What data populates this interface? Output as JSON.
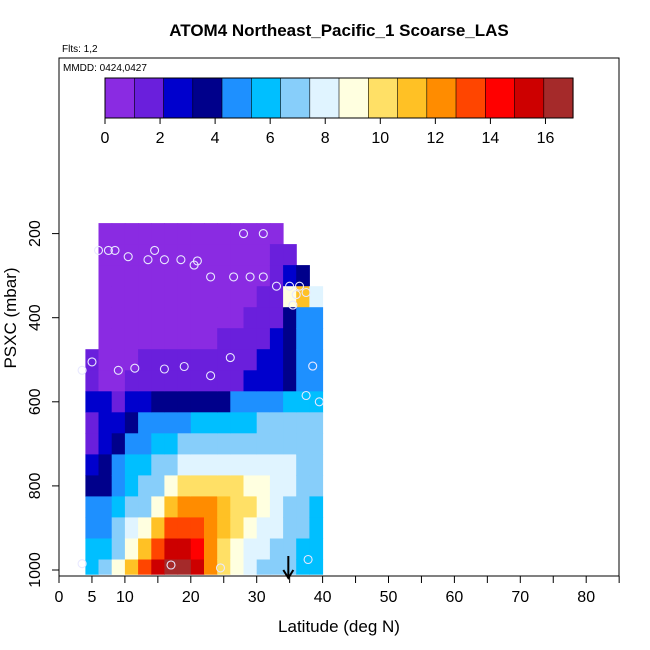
{
  "chart_data": {
    "type": "heatmap",
    "title": "ATOM4 Northeast_Pacific_1 Scoarse_LAS",
    "flights_label": "Flts: 1,2",
    "dates_label": "MMDD: 0424,0427",
    "xlabel": "Latitude (deg N)",
    "ylabel": "PSXC (mbar)",
    "xlim": [
      0,
      85
    ],
    "ylim": [
      1010,
      0
    ],
    "x_ticks": [
      0,
      5,
      10,
      20,
      30,
      40,
      50,
      60,
      70,
      80
    ],
    "y_ticks": [
      200,
      400,
      600,
      800,
      1000
    ],
    "colorbar": {
      "range": [
        0,
        17
      ],
      "ticks": [
        0,
        2,
        4,
        6,
        8,
        10,
        12,
        14,
        16
      ],
      "colors": [
        "#8a2be2",
        "#6a1fdc",
        "#0000cd",
        "#00008b",
        "#1e90ff",
        "#00bfff",
        "#87cefa",
        "#e0f4ff",
        "#ffffe0",
        "#ffe066",
        "#ffc125",
        "#ff8c00",
        "#ff4500",
        "#ff0000",
        "#cd0000",
        "#a52a2a"
      ]
    },
    "pressure_levels": [
      200,
      250,
      300,
      350,
      400,
      450,
      500,
      550,
      600,
      650,
      700,
      750,
      800,
      850,
      900,
      950,
      1000
    ],
    "profiles": [
      {
        "lat": 4,
        "cells": [
          null,
          null,
          null,
          null,
          null,
          null,
          1.5,
          1.8,
          2.3,
          2.1,
          2.0,
          2.6,
          3.2,
          4.5,
          5.0,
          5.4,
          5.5
        ]
      },
      {
        "lat": 6,
        "cells": [
          0.4,
          0.4,
          0.5,
          0.5,
          0.6,
          0.7,
          0.8,
          0.9,
          2.2,
          2.4,
          2.6,
          3.4,
          4.2,
          5.0,
          5.3,
          5.7,
          6.5
        ]
      },
      {
        "lat": 8,
        "cells": [
          0.4,
          0.5,
          0.5,
          0.6,
          0.6,
          0.7,
          0.9,
          1.0,
          2.1,
          3.0,
          3.6,
          4.8,
          5.3,
          5.8,
          6.5,
          7.2,
          8.5
        ]
      },
      {
        "lat": 10,
        "cells": [
          0.5,
          0.5,
          0.5,
          0.6,
          0.7,
          0.8,
          1.0,
          1.2,
          2.6,
          3.8,
          4.6,
          5.5,
          5.9,
          6.4,
          7.6,
          9.0,
          10.8
        ]
      },
      {
        "lat": 12,
        "cells": [
          0.5,
          0.5,
          0.6,
          0.7,
          0.8,
          0.8,
          1.1,
          1.3,
          3.0,
          4.4,
          5.2,
          5.9,
          6.4,
          7.2,
          9.0,
          11.0,
          13.5
        ]
      },
      {
        "lat": 14,
        "cells": [
          0.5,
          0.5,
          0.6,
          0.7,
          0.8,
          0.9,
          1.2,
          1.4,
          3.3,
          4.8,
          5.8,
          6.4,
          7.4,
          8.8,
          11.5,
          13.5,
          15.3
        ]
      },
      {
        "lat": 16,
        "cells": [
          0.5,
          0.6,
          0.6,
          0.7,
          0.8,
          0.9,
          1.2,
          1.5,
          3.5,
          5.0,
          6.2,
          7.3,
          9.0,
          11.2,
          13.2,
          15.1,
          16.2
        ]
      },
      {
        "lat": 18,
        "cells": [
          0.5,
          0.6,
          0.6,
          0.7,
          0.8,
          0.9,
          1.2,
          1.5,
          3.6,
          5.2,
          6.4,
          8.0,
          9.8,
          12.0,
          13.8,
          15.6,
          16.4
        ]
      },
      {
        "lat": 20,
        "cells": [
          0.5,
          0.6,
          0.7,
          0.7,
          0.8,
          1.0,
          1.3,
          1.6,
          3.8,
          5.4,
          6.6,
          8.2,
          10.0,
          12.2,
          13.6,
          14.8,
          15.0
        ]
      },
      {
        "lat": 22,
        "cells": [
          0.6,
          0.6,
          0.7,
          0.8,
          0.9,
          1.0,
          1.4,
          1.7,
          4.0,
          5.6,
          6.7,
          8.2,
          10.0,
          11.8,
          12.6,
          11.8,
          12.0
        ]
      },
      {
        "lat": 24,
        "cells": [
          0.6,
          0.7,
          0.7,
          0.8,
          0.9,
          1.1,
          1.5,
          1.8,
          4.2,
          5.8,
          6.8,
          8.0,
          9.8,
          11.0,
          11.2,
          9.8,
          9.6
        ]
      },
      {
        "lat": 26,
        "cells": [
          0.7,
          0.7,
          0.8,
          0.9,
          1.0,
          1.2,
          1.7,
          2.0,
          4.4,
          6.0,
          6.9,
          7.8,
          9.6,
          10.4,
          10.0,
          8.8,
          8.6
        ]
      },
      {
        "lat": 28,
        "cells": [
          0.7,
          0.8,
          0.9,
          1.0,
          1.2,
          1.4,
          1.9,
          2.2,
          4.6,
          6.2,
          7.0,
          7.8,
          9.2,
          9.6,
          9.0,
          8.2,
          8.0
        ]
      },
      {
        "lat": 30,
        "cells": [
          0.8,
          0.9,
          1.0,
          1.2,
          1.4,
          1.7,
          2.2,
          2.5,
          4.9,
          6.4,
          7.2,
          7.8,
          8.8,
          8.8,
          8.2,
          7.6,
          7.4
        ]
      },
      {
        "lat": 32,
        "cells": [
          1.0,
          1.1,
          1.3,
          1.6,
          1.9,
          2.3,
          2.8,
          3.0,
          5.2,
          6.6,
          7.3,
          7.8,
          8.3,
          8.1,
          7.6,
          7.0,
          6.9
        ]
      },
      {
        "lat": 34,
        "cells": [
          null,
          1.6,
          2.5,
          9.0,
          3.4,
          3.8,
          4.2,
          4.2,
          5.6,
          6.7,
          7.3,
          7.6,
          7.6,
          7.3,
          7.0,
          6.6,
          6.4
        ]
      },
      {
        "lat": 36,
        "cells": [
          null,
          null,
          3.4,
          11.5,
          4.4,
          4.6,
          4.8,
          4.9,
          5.9,
          6.7,
          7.1,
          7.2,
          7.0,
          6.7,
          6.4,
          6.0,
          6.0
        ]
      },
      {
        "lat": 38,
        "cells": [
          null,
          null,
          null,
          7.5,
          5.0,
          5.1,
          5.2,
          5.3,
          6.1,
          6.6,
          6.8,
          6.7,
          6.4,
          6.0,
          5.8,
          5.6,
          5.6
        ]
      }
    ],
    "observations": [
      {
        "lat": 28,
        "p": 200
      },
      {
        "lat": 31,
        "p": 200
      },
      {
        "lat": 6,
        "p": 240
      },
      {
        "lat": 7.5,
        "p": 240
      },
      {
        "lat": 8.5,
        "p": 240
      },
      {
        "lat": 14.5,
        "p": 240
      },
      {
        "lat": 10.5,
        "p": 255
      },
      {
        "lat": 13.5,
        "p": 262
      },
      {
        "lat": 16,
        "p": 262
      },
      {
        "lat": 18.5,
        "p": 262
      },
      {
        "lat": 21,
        "p": 265
      },
      {
        "lat": 20.5,
        "p": 275
      },
      {
        "lat": 23,
        "p": 303
      },
      {
        "lat": 26.5,
        "p": 303
      },
      {
        "lat": 29,
        "p": 303
      },
      {
        "lat": 31,
        "p": 303
      },
      {
        "lat": 33,
        "p": 325
      },
      {
        "lat": 35,
        "p": 325
      },
      {
        "lat": 36.5,
        "p": 325
      },
      {
        "lat": 37.5,
        "p": 340
      },
      {
        "lat": 36,
        "p": 345
      },
      {
        "lat": 35.5,
        "p": 370
      },
      {
        "lat": 5,
        "p": 505
      },
      {
        "lat": 26,
        "p": 495
      },
      {
        "lat": 3.5,
        "p": 525
      },
      {
        "lat": 9,
        "p": 525
      },
      {
        "lat": 11.5,
        "p": 520
      },
      {
        "lat": 16,
        "p": 522
      },
      {
        "lat": 19,
        "p": 516
      },
      {
        "lat": 23,
        "p": 538
      },
      {
        "lat": 38.5,
        "p": 515
      },
      {
        "lat": 37.5,
        "p": 585
      },
      {
        "lat": 39.5,
        "p": 600
      },
      {
        "lat": 3.5,
        "p": 985
      },
      {
        "lat": 17,
        "p": 988
      },
      {
        "lat": 24.5,
        "p": 995
      },
      {
        "lat": 37.8,
        "p": 975
      }
    ],
    "arrow_lat": 34.8
  }
}
